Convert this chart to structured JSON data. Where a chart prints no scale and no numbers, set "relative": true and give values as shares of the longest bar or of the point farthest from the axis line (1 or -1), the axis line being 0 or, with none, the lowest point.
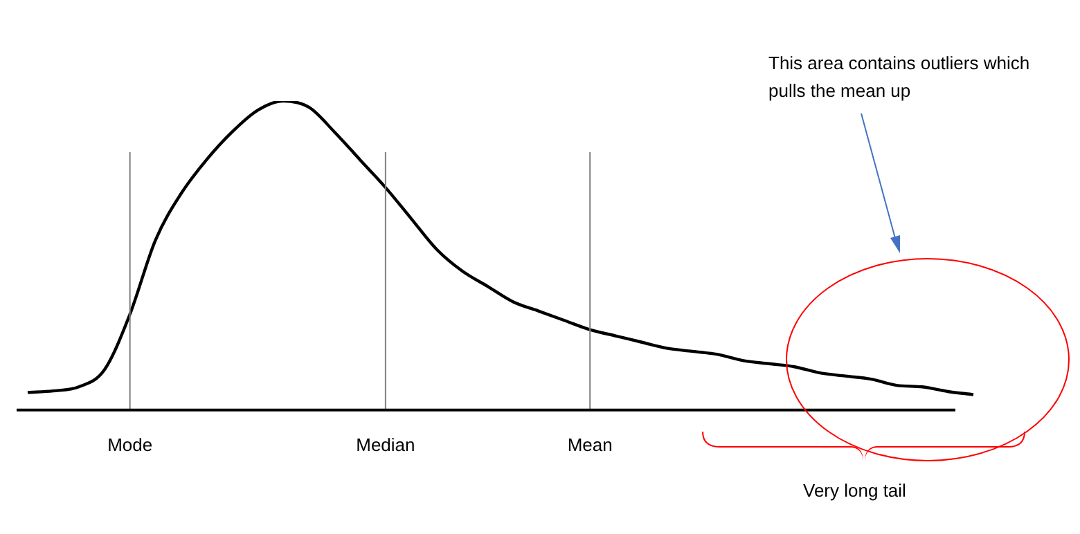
{
  "chart_data": {
    "type": "line",
    "relative": true,
    "color": "#000000",
    "marker": "none",
    "grid": false,
    "legend": false,
    "tick_labels": "x",
    "categories": [
      null,
      null,
      null,
      null,
      "Mode",
      null,
      null,
      null,
      null,
      null,
      null,
      null,
      null,
      null,
      "Median",
      null,
      null,
      null,
      null,
      null,
      null,
      null,
      "Mean",
      null,
      null,
      null,
      null,
      null,
      null,
      null,
      null,
      null,
      null,
      null,
      null,
      null,
      null,
      null
    ],
    "values": [
      0.057,
      0.062,
      0.075,
      0.13,
      0.31,
      0.55,
      0.7,
      0.81,
      0.9,
      0.97,
      1,
      0.98,
      0.9,
      0.81,
      0.72,
      0.62,
      0.52,
      0.45,
      0.4,
      0.35,
      0.32,
      0.29,
      0.26,
      0.24,
      0.22,
      0.2,
      0.19,
      0.18,
      0.16,
      0.15,
      0.14,
      0.12,
      0.11,
      0.1,
      0.08,
      0.075,
      0.06,
      0.05
    ],
    "ref_lines": [
      {
        "axis": "x",
        "value": "Mode",
        "color": "#808080"
      },
      {
        "axis": "x",
        "value": "Median",
        "color": "#808080"
      },
      {
        "axis": "x",
        "value": "Mean",
        "color": "#808080"
      }
    ],
    "annotations": [
      "This area contains outliers which pulls the mean up",
      "Very long tail"
    ]
  }
}
